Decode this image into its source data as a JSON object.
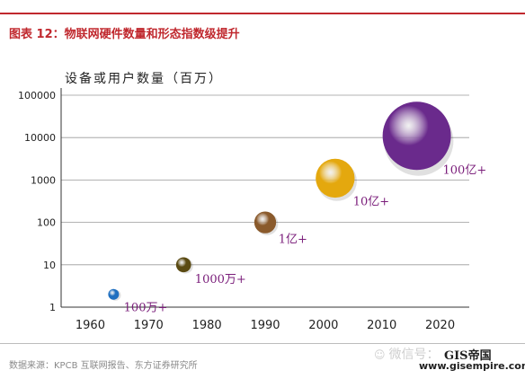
{
  "figure": {
    "title": "图表 12：物联网硬件数量和形态指数级提升",
    "source": "数据来源：KPCB 互联网报告、东方证券研究所",
    "accent_color": "#c0282e",
    "watermark": {
      "icon": "wechat-icon",
      "text": "微信号：",
      "logo": "GIS帝国",
      "url": "www.gisempire.com"
    }
  },
  "chart_data": {
    "type": "scatter",
    "title": "",
    "ylabel": "设备或用户数量（百万）",
    "xlabel": "",
    "y_scale": "log",
    "xlim": [
      1955,
      2025
    ],
    "ylim": [
      1,
      100000
    ],
    "x_ticks": [
      1960,
      1970,
      1980,
      1990,
      2000,
      2010,
      2020
    ],
    "y_ticks": [
      1,
      10,
      100,
      1000,
      10000,
      100000
    ],
    "y_tick_labels": [
      "1",
      "10",
      "100",
      "1000",
      "10000",
      "100000"
    ],
    "grid": "horizontal",
    "points": [
      {
        "x": 1964,
        "y": 2,
        "label": "100万+",
        "color": "#1f6fc0",
        "rel_size": 0.15
      },
      {
        "x": 1976,
        "y": 10,
        "label": "1000万+",
        "color": "#5a4a12",
        "rel_size": 0.22
      },
      {
        "x": 1990,
        "y": 100,
        "label": "1亿+",
        "color": "#8a5a2c",
        "rel_size": 0.32
      },
      {
        "x": 2002,
        "y": 1100,
        "label": "10亿+",
        "color": "#e4a80e",
        "rel_size": 0.57
      },
      {
        "x": 2016,
        "y": 11000,
        "label": "100亿+",
        "color": "#6a2a8c",
        "rel_size": 1.0
      }
    ],
    "label_color": "#7a1d7a"
  }
}
